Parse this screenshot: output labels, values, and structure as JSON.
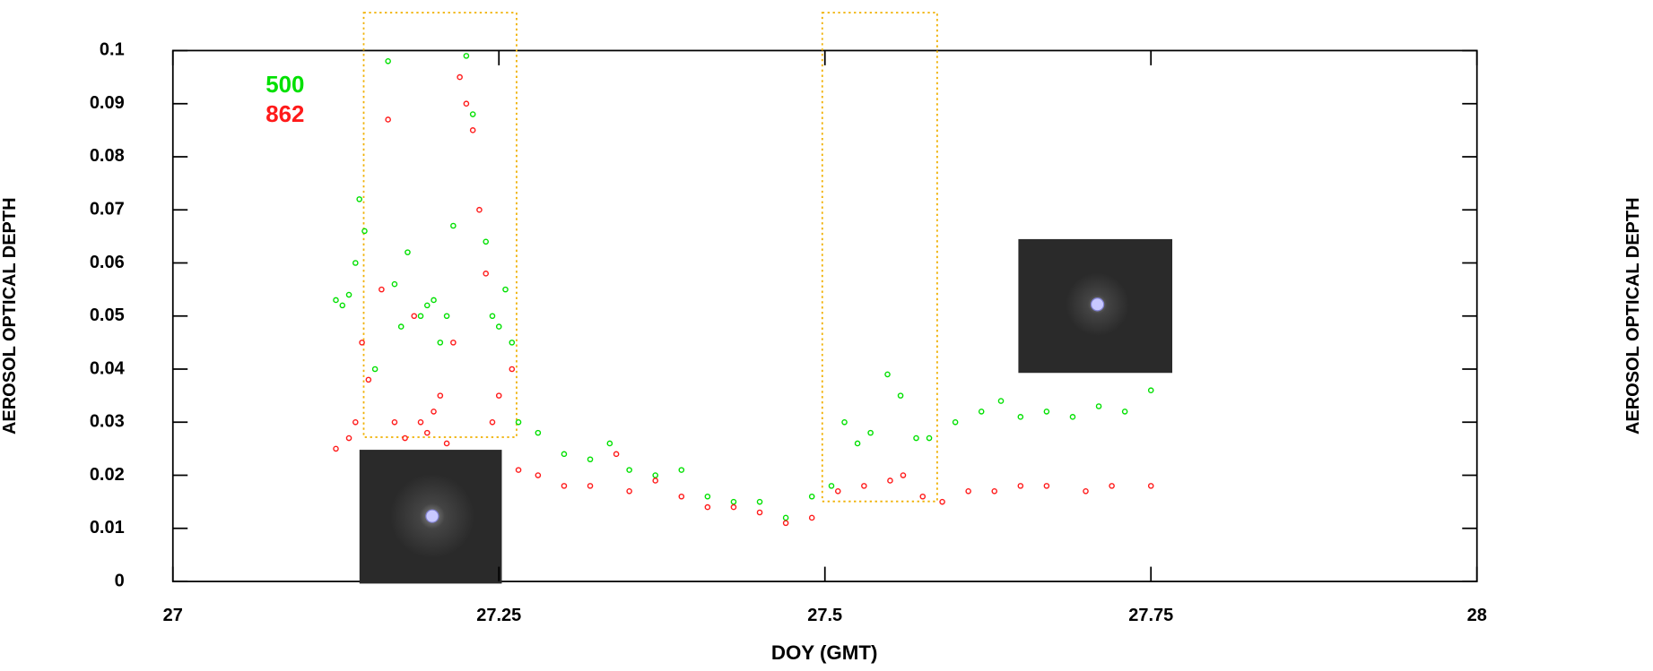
{
  "chart_data": {
    "type": "scatter",
    "xlabel": "DOY  (GMT)",
    "ylabel": "AEROSOL OPTICAL DEPTH",
    "ylabel_right": "AEROSOL OPTICAL DEPTH",
    "xlim": [
      27,
      28
    ],
    "xticks": [
      27,
      27.25,
      27.5,
      27.75,
      28
    ],
    "ylim": [
      0,
      0.1
    ],
    "yticks": [
      0,
      0.01,
      0.02,
      0.03,
      0.04,
      0.05,
      0.06,
      0.07,
      0.08,
      0.09,
      0.1
    ],
    "legend": "upper left",
    "series": [
      {
        "name": "500",
        "color": "#00e000",
        "x": [
          27.125,
          27.13,
          27.135,
          27.14,
          27.143,
          27.147,
          27.155,
          27.165,
          27.17,
          27.175,
          27.18,
          27.19,
          27.195,
          27.2,
          27.205,
          27.21,
          27.215,
          27.225,
          27.23,
          27.24,
          27.245,
          27.25,
          27.255,
          27.26,
          27.265,
          27.28,
          27.3,
          27.32,
          27.335,
          27.35,
          27.37,
          27.39,
          27.41,
          27.43,
          27.45,
          27.47,
          27.49,
          27.505,
          27.515,
          27.525,
          27.535,
          27.548,
          27.558,
          27.57,
          27.58,
          27.6,
          27.62,
          27.635,
          27.65,
          27.67,
          27.69,
          27.71,
          27.73,
          27.75
        ],
        "values": [
          0.053,
          0.052,
          0.054,
          0.06,
          0.072,
          0.066,
          0.04,
          0.098,
          0.056,
          0.048,
          0.062,
          0.05,
          0.052,
          0.053,
          0.045,
          0.05,
          0.067,
          0.099,
          0.088,
          0.064,
          0.05,
          0.048,
          0.055,
          0.045,
          0.03,
          0.028,
          0.024,
          0.023,
          0.026,
          0.021,
          0.02,
          0.021,
          0.016,
          0.015,
          0.015,
          0.012,
          0.016,
          0.018,
          0.03,
          0.026,
          0.028,
          0.039,
          0.035,
          0.027,
          0.027,
          0.03,
          0.032,
          0.034,
          0.031,
          0.032,
          0.031,
          0.033,
          0.032,
          0.036
        ]
      },
      {
        "name": "862",
        "color": "#ff1a1a",
        "x": [
          27.125,
          27.135,
          27.14,
          27.145,
          27.15,
          27.16,
          27.165,
          27.17,
          27.178,
          27.185,
          27.19,
          27.195,
          27.2,
          27.205,
          27.21,
          27.215,
          27.22,
          27.225,
          27.23,
          27.235,
          27.24,
          27.245,
          27.25,
          27.26,
          27.265,
          27.28,
          27.3,
          27.32,
          27.34,
          27.35,
          27.37,
          27.39,
          27.41,
          27.43,
          27.45,
          27.47,
          27.49,
          27.51,
          27.53,
          27.55,
          27.56,
          27.575,
          27.59,
          27.61,
          27.63,
          27.65,
          27.67,
          27.7,
          27.72,
          27.75
        ],
        "values": [
          0.025,
          0.027,
          0.03,
          0.045,
          0.038,
          0.055,
          0.087,
          0.03,
          0.027,
          0.05,
          0.03,
          0.028,
          0.032,
          0.035,
          0.026,
          0.045,
          0.095,
          0.09,
          0.085,
          0.07,
          0.058,
          0.03,
          0.035,
          0.04,
          0.021,
          0.02,
          0.018,
          0.018,
          0.024,
          0.017,
          0.019,
          0.016,
          0.014,
          0.014,
          0.013,
          0.011,
          0.012,
          0.017,
          0.018,
          0.019,
          0.02,
          0.016,
          0.015,
          0.017,
          0.017,
          0.018,
          0.018,
          0.017,
          0.018,
          0.018
        ]
      }
    ]
  }
}
